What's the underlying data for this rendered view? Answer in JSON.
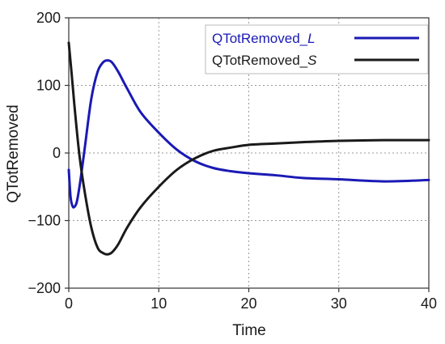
{
  "chart_data": {
    "type": "line",
    "xlabel": "Time",
    "ylabel": "QTotRemoved",
    "xlim": [
      0,
      40
    ],
    "ylim": [
      -200,
      200
    ],
    "x_ticks": [
      "0",
      "10",
      "20",
      "30",
      "40"
    ],
    "y_ticks": [
      "200",
      "100",
      "0",
      "−100",
      "−200"
    ],
    "x_tick_values": [
      0,
      10,
      20,
      30,
      40
    ],
    "y_tick_values": [
      200,
      100,
      0,
      -100,
      -200
    ],
    "grid": true,
    "legend_position": "top-right",
    "series": [
      {
        "name": "QTotRemoved_L",
        "legend_prefix": "QTotRemoved_",
        "legend_suffix": "L",
        "color": "#1a1ab5",
        "x": [
          0,
          0.2,
          0.4,
          0.6,
          0.9,
          1.3,
          1.8,
          2.5,
          3.2,
          3.8,
          4.3,
          4.8,
          5.5,
          6.5,
          8,
          10,
          12,
          14,
          16,
          18,
          20,
          23,
          26,
          30,
          35,
          40
        ],
        "y": [
          -25,
          -65,
          -78,
          -80,
          -72,
          -40,
          10,
          80,
          120,
          134,
          137,
          134,
          120,
          95,
          60,
          30,
          5,
          -12,
          -22,
          -27,
          -30,
          -33,
          -37,
          -39,
          -42,
          -40
        ]
      },
      {
        "name": "QTotRemoved_S",
        "legend_prefix": "QTotRemoved_",
        "legend_suffix": "S",
        "color": "#1a1a1a",
        "x": [
          0,
          0.3,
          0.7,
          1.2,
          1.8,
          2.5,
          3.2,
          3.8,
          4.3,
          4.8,
          5.5,
          6.5,
          8,
          10,
          12,
          14,
          16,
          18,
          20,
          23,
          26,
          30,
          35,
          40
        ],
        "y": [
          163,
          120,
          60,
          -5,
          -60,
          -110,
          -140,
          -148,
          -150,
          -147,
          -135,
          -110,
          -80,
          -50,
          -25,
          -8,
          3,
          8,
          12,
          14,
          16,
          18,
          19,
          19
        ]
      }
    ]
  }
}
